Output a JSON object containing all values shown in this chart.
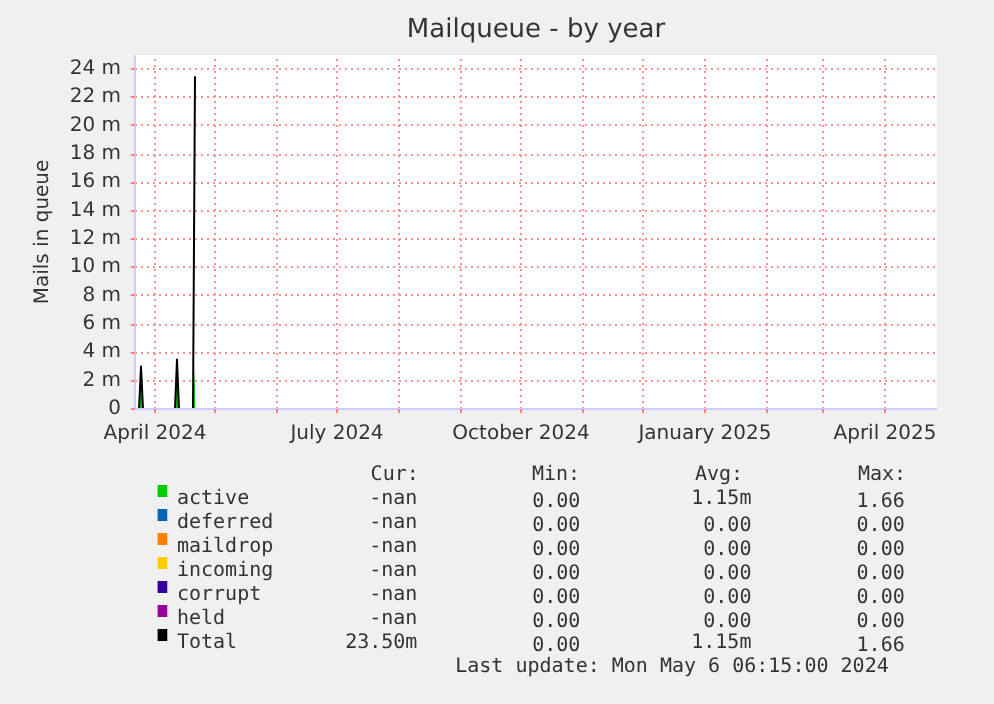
{
  "chart_data": {
    "type": "line",
    "title": "Mailqueue - by year",
    "ylabel": "Mails in queue",
    "x": [
      "2024-03-22",
      "2024-03-24",
      "2024-03-25",
      "2024-03-26",
      "2024-04-11",
      "2024-04-12",
      "2024-04-13",
      "2024-04-20",
      "2024-04-21"
    ],
    "series": [
      {
        "name": "active",
        "color": "#00cc00",
        "type": "area",
        "values": [
          0,
          0,
          3,
          0,
          0,
          3.5,
          0,
          0,
          3
        ]
      },
      {
        "name": "deferred",
        "color": "#0066b3",
        "values": [
          null,
          null,
          null,
          null,
          null,
          null,
          null,
          null,
          null
        ]
      },
      {
        "name": "maildrop",
        "color": "#ff8000",
        "values": [
          null,
          null,
          null,
          null,
          null,
          null,
          null,
          null,
          null
        ]
      },
      {
        "name": "incoming",
        "color": "#ffcc00",
        "values": [
          null,
          null,
          null,
          null,
          null,
          null,
          null,
          null,
          null
        ]
      },
      {
        "name": "corrupt",
        "color": "#330099",
        "values": [
          null,
          null,
          null,
          null,
          null,
          null,
          null,
          null,
          null
        ]
      },
      {
        "name": "held",
        "color": "#990099",
        "values": [
          null,
          null,
          null,
          null,
          null,
          null,
          null,
          null,
          null
        ]
      },
      {
        "name": "Total",
        "color": "#000000",
        "values": [
          0,
          0,
          3,
          0,
          0,
          3.5,
          0,
          0,
          23.5
        ]
      }
    ],
    "xlim": [
      "2024-03-22",
      "2025-04-27"
    ],
    "xticks": [
      {
        "value": "2024-04-01",
        "label": "April 2024"
      },
      {
        "value": "2024-05-01",
        "label": null
      },
      {
        "value": "2024-06-01",
        "label": null
      },
      {
        "value": "2024-07-01",
        "label": "July 2024"
      },
      {
        "value": "2024-08-01",
        "label": null
      },
      {
        "value": "2024-09-01",
        "label": null
      },
      {
        "value": "2024-10-01",
        "label": "October 2024"
      },
      {
        "value": "2024-11-01",
        "label": null
      },
      {
        "value": "2024-12-01",
        "label": null
      },
      {
        "value": "2025-01-01",
        "label": "January 2025"
      },
      {
        "value": "2025-02-01",
        "label": null
      },
      {
        "value": "2025-03-01",
        "label": null
      },
      {
        "value": "2025-04-01",
        "label": "April 2025"
      }
    ],
    "ylim": [
      0,
      25
    ],
    "yticks": [
      0,
      {
        "value": 2,
        "label": "2 m"
      },
      {
        "value": 4,
        "label": "4 m"
      },
      {
        "value": 6,
        "label": "6 m"
      },
      {
        "value": 8,
        "label": "8 m"
      },
      {
        "value": 10,
        "label": "10 m"
      },
      {
        "value": 12,
        "label": "12 m"
      },
      {
        "value": 14,
        "label": "14 m"
      },
      {
        "value": 16,
        "label": "16 m"
      },
      {
        "value": 18,
        "label": "18 m"
      },
      {
        "value": 20,
        "label": "20 m"
      },
      {
        "value": 22,
        "label": "22 m"
      },
      {
        "value": 24,
        "label": "24 m"
      }
    ],
    "grid": true,
    "legend": "bottom",
    "line_style": "solid",
    "annotations": [
      "Cur:",
      "Min:",
      "Avg:",
      "Max:",
      "-nan",
      "0.00",
      "1.15m",
      "1.66",
      "-nan",
      "0.00",
      "0.00",
      "0.00",
      "-nan",
      "0.00",
      "0.00",
      "0.00",
      "-nan",
      "0.00",
      "0.00",
      "0.00",
      "-nan",
      "0.00",
      "0.00",
      "0.00",
      "-nan",
      "0.00",
      "0.00",
      "0.00",
      "23.50m",
      "0.00",
      "1.15m",
      "1.66",
      "Last update:  Mon May  6 06:15:00 2024"
    ]
  }
}
